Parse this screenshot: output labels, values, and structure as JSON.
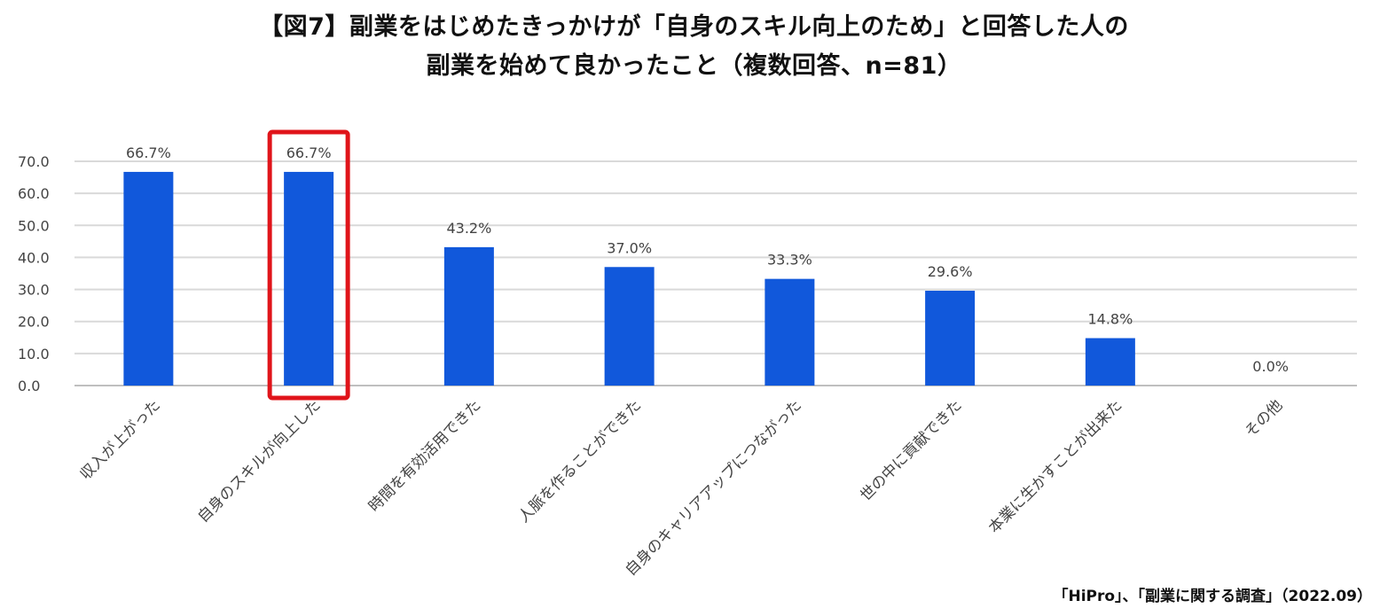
{
  "title_line1": "【図7】副業をはじめたきっかけが「自身のスキル向上のため」と回答した人の",
  "title_line2": "副業を始めて良かったこと（複数回答、n=81）",
  "source": "「HiPro」、「副業に関する調査」（2022.09）",
  "colors": {
    "bar": "#1158DB",
    "highlight": "#E0141A",
    "grid": "#D9D9D9",
    "axis": "#BFBFBF"
  },
  "chart_data": {
    "type": "bar",
    "categories": [
      "収入が上がった",
      "自身のスキルが向上した",
      "時間を有効活用できた",
      "人脈を作ることができた",
      "自身のキャリアアップにつながった",
      "世の中に貢献できた",
      "本業に生かすことが出来た",
      "その他"
    ],
    "values": [
      66.7,
      66.7,
      43.2,
      37.0,
      33.3,
      29.6,
      14.8,
      0.0
    ],
    "data_labels": [
      "66.7%",
      "66.7%",
      "43.2%",
      "37.0%",
      "33.3%",
      "29.6%",
      "14.8%",
      "0.0%"
    ],
    "yticks": [
      "0.0",
      "10.0",
      "20.0",
      "30.0",
      "40.0",
      "50.0",
      "60.0",
      "70.0"
    ],
    "ylim": [
      0,
      70
    ],
    "highlight_index": 1,
    "grid": true
  }
}
